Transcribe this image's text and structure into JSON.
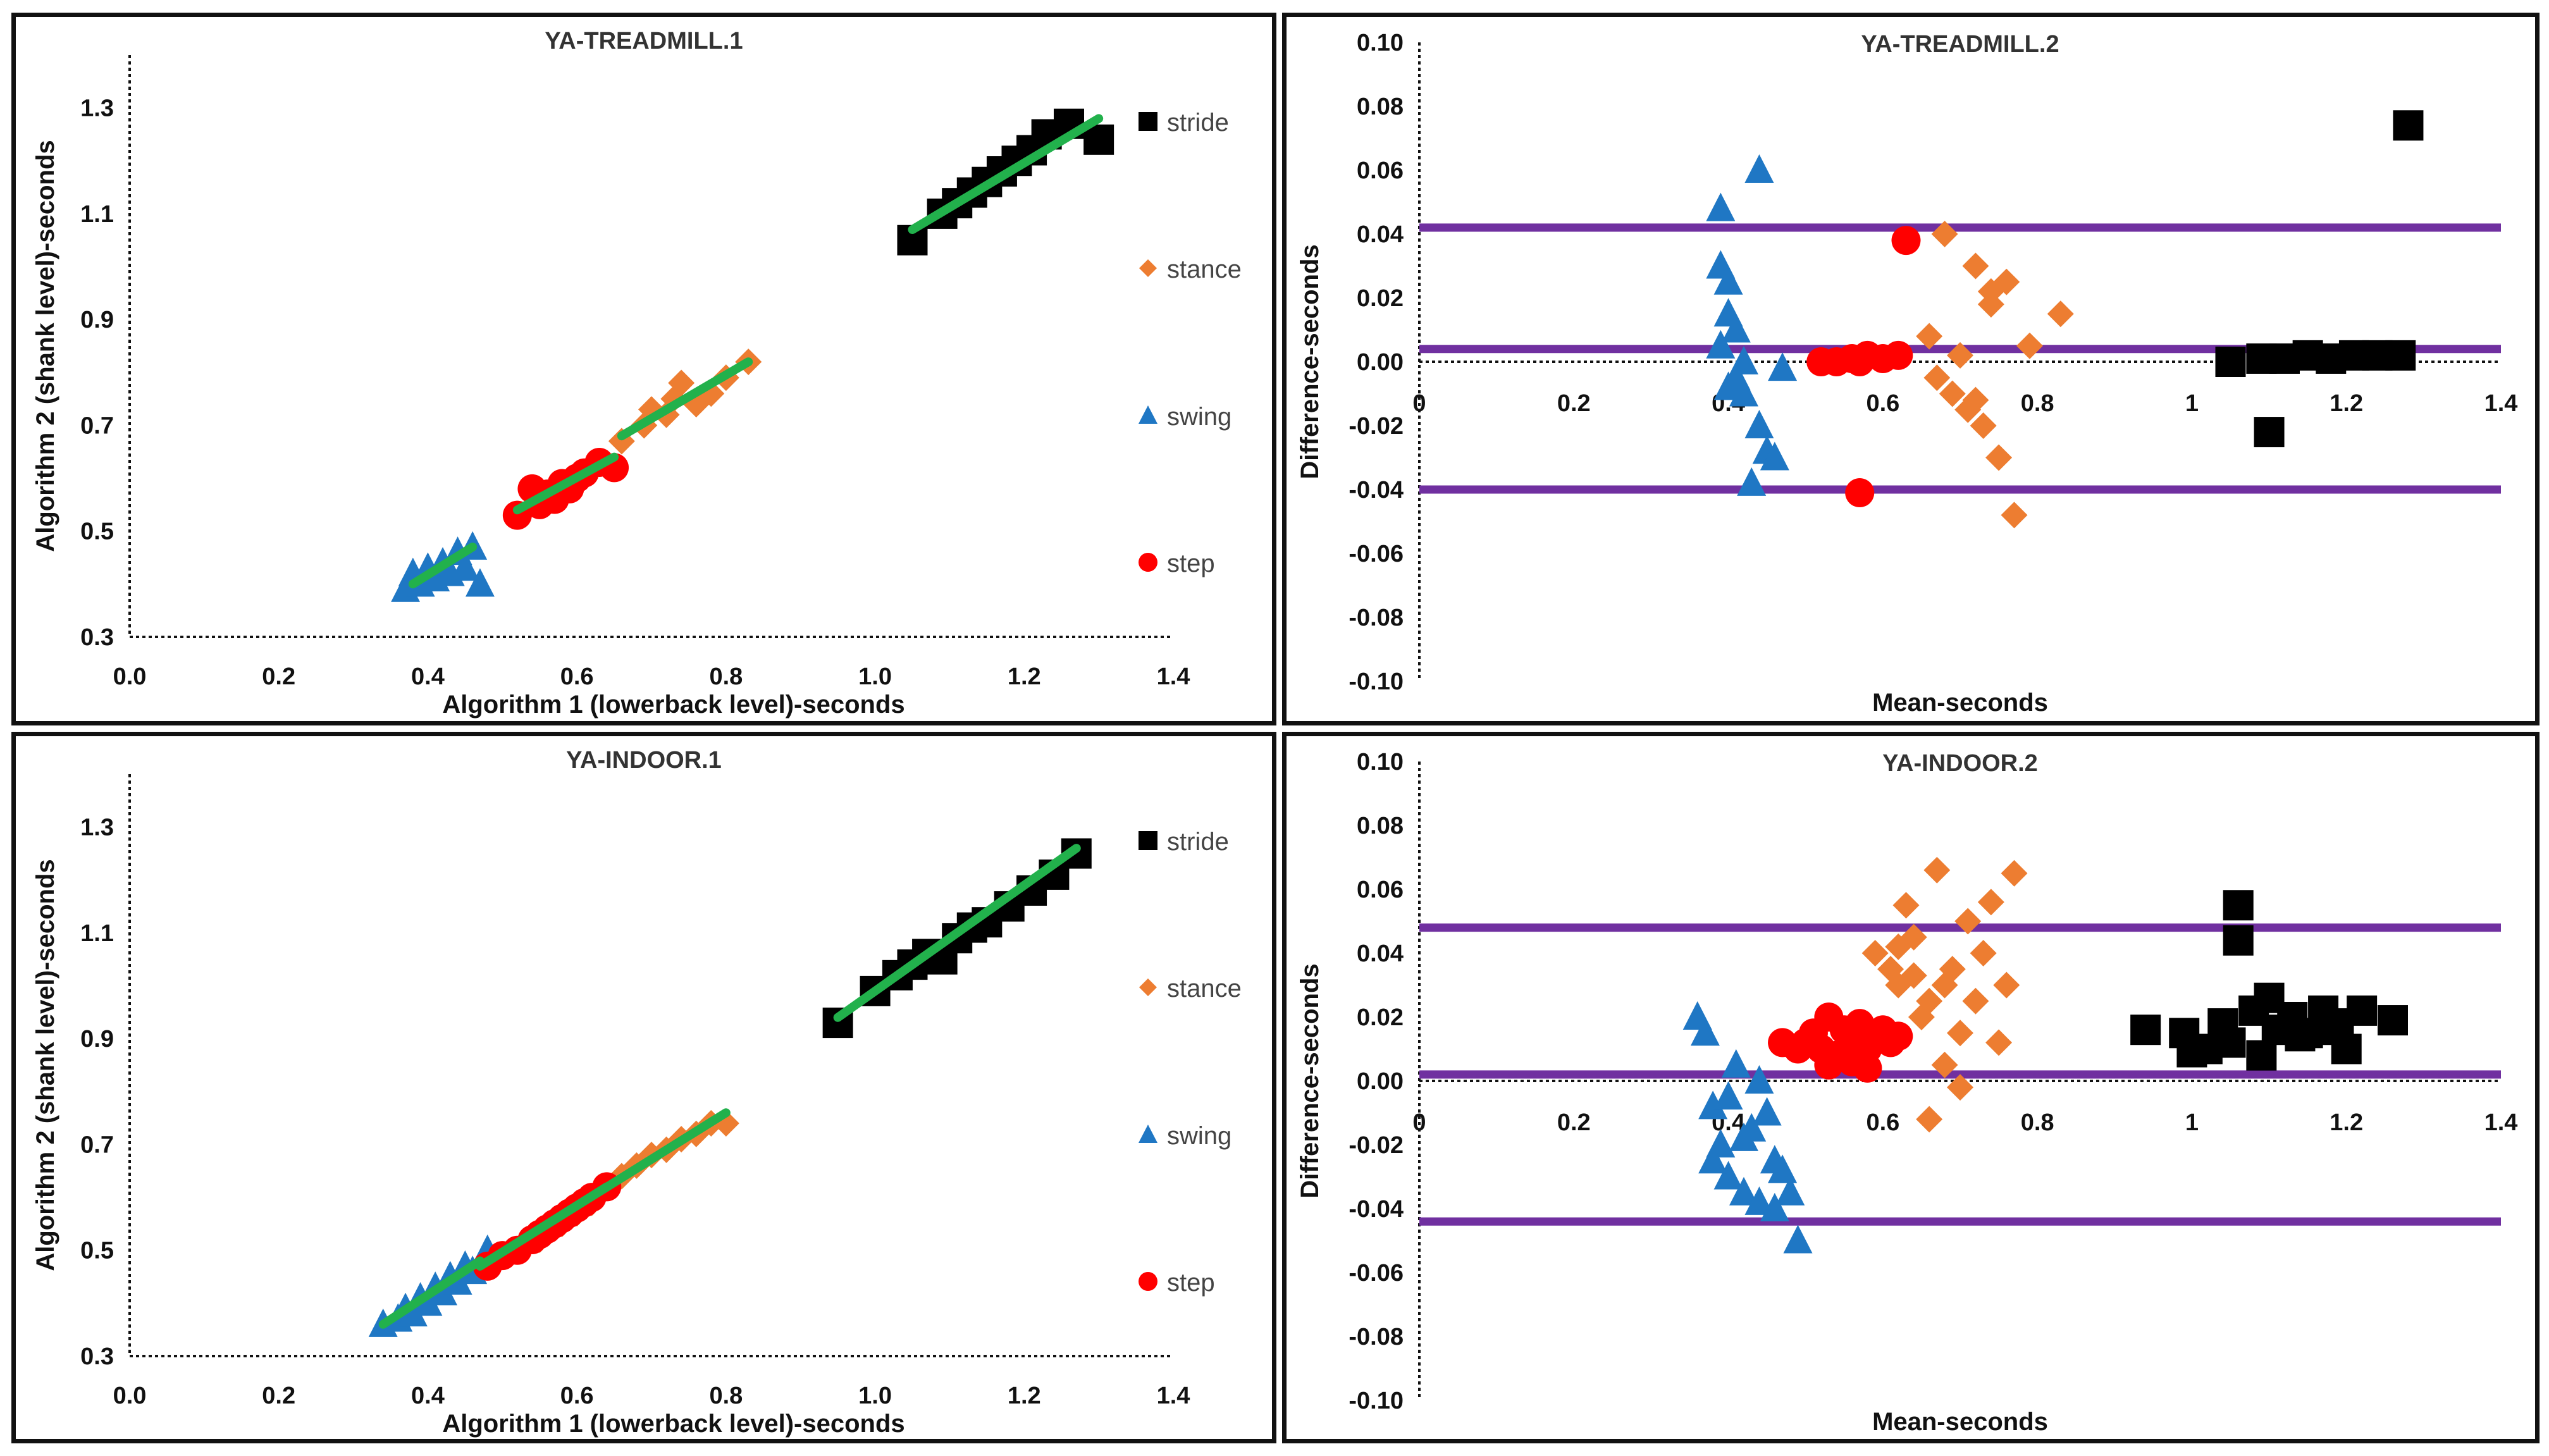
{
  "colors": {
    "stride": "#000000",
    "stance": "#ed7d31",
    "swing": "#1f77c4",
    "step": "#ff0000",
    "fit_line": "#22b14c",
    "limit_line": "#7030a0"
  },
  "chart_data": [
    {
      "id": "ya-treadmill-1",
      "type": "scatter",
      "title": "YA-TREADMILL.1",
      "xlabel": "Algorithm 1 (lowerback level)-seconds",
      "ylabel": "Algorithm 2 (shank level)-seconds",
      "xlim": [
        0.0,
        1.4
      ],
      "ylim": [
        0.3,
        1.4
      ],
      "xticks": [
        "0.0",
        "0.2",
        "0.4",
        "0.6",
        "0.8",
        "1.0",
        "1.2",
        "1.4"
      ],
      "yticks": [
        "0.3",
        "0.5",
        "0.7",
        "0.9",
        "1.1",
        "1.3"
      ],
      "legend": "right",
      "series": [
        {
          "name": "stride",
          "marker": "square",
          "x": [
            1.05,
            1.09,
            1.11,
            1.13,
            1.15,
            1.17,
            1.19,
            1.21,
            1.23,
            1.26,
            1.3
          ],
          "y": [
            1.05,
            1.1,
            1.12,
            1.14,
            1.16,
            1.18,
            1.2,
            1.22,
            1.25,
            1.27,
            1.24
          ],
          "fit": [
            [
              1.05,
              1.07
            ],
            [
              1.3,
              1.28
            ]
          ]
        },
        {
          "name": "stance",
          "marker": "diamond",
          "x": [
            0.66,
            0.69,
            0.7,
            0.72,
            0.73,
            0.74,
            0.76,
            0.78,
            0.8,
            0.83
          ],
          "y": [
            0.67,
            0.7,
            0.73,
            0.72,
            0.75,
            0.78,
            0.74,
            0.76,
            0.79,
            0.82
          ],
          "fit": [
            [
              0.66,
              0.68
            ],
            [
              0.83,
              0.82
            ]
          ]
        },
        {
          "name": "swing",
          "marker": "triangle",
          "x": [
            0.37,
            0.38,
            0.39,
            0.4,
            0.41,
            0.42,
            0.43,
            0.44,
            0.45,
            0.46,
            0.47
          ],
          "y": [
            0.39,
            0.42,
            0.4,
            0.43,
            0.41,
            0.44,
            0.42,
            0.46,
            0.43,
            0.47,
            0.4
          ],
          "fit": [
            [
              0.38,
              0.4
            ],
            [
              0.46,
              0.47
            ]
          ]
        },
        {
          "name": "step",
          "marker": "circle",
          "x": [
            0.52,
            0.54,
            0.55,
            0.56,
            0.57,
            0.58,
            0.59,
            0.6,
            0.61,
            0.63,
            0.65
          ],
          "y": [
            0.53,
            0.58,
            0.55,
            0.57,
            0.56,
            0.59,
            0.58,
            0.6,
            0.61,
            0.63,
            0.62
          ],
          "fit": [
            [
              0.52,
              0.54
            ],
            [
              0.65,
              0.64
            ]
          ]
        }
      ]
    },
    {
      "id": "ya-treadmill-2",
      "type": "scatter",
      "title": "YA-TREADMILL.2",
      "xlabel": "Mean-seconds",
      "ylabel": "Difference-seconds",
      "xlim": [
        0,
        1.4
      ],
      "ylim": [
        -0.1,
        0.1
      ],
      "xticks": [
        "0",
        "0.2",
        "0.4",
        "0.6",
        "0.8",
        "1",
        "1.2",
        "1.4"
      ],
      "yticks": [
        "0.10",
        "0.08",
        "0.06",
        "0.04",
        "0.02",
        "0.00",
        "-0.02",
        "-0.04",
        "-0.06",
        "-0.08",
        "-0.10"
      ],
      "hlines": [
        0.042,
        0.004,
        -0.04
      ],
      "series": [
        {
          "name": "stride",
          "marker": "square",
          "x": [
            1.05,
            1.09,
            1.1,
            1.12,
            1.15,
            1.18,
            1.21,
            1.24,
            1.27,
            1.28
          ],
          "y": [
            0.0,
            0.001,
            -0.022,
            0.001,
            0.002,
            0.001,
            0.002,
            0.002,
            0.002,
            0.074
          ]
        },
        {
          "name": "stance",
          "marker": "diamond",
          "x": [
            0.66,
            0.68,
            0.69,
            0.7,
            0.71,
            0.72,
            0.73,
            0.74,
            0.75,
            0.76,
            0.77,
            0.79,
            0.83,
            0.67,
            0.72,
            0.74
          ],
          "y": [
            0.008,
            0.04,
            -0.01,
            0.002,
            -0.015,
            0.03,
            -0.02,
            0.018,
            -0.03,
            0.025,
            -0.048,
            0.005,
            0.015,
            -0.005,
            -0.012,
            0.022
          ]
        },
        {
          "name": "swing",
          "marker": "triangle",
          "x": [
            0.39,
            0.39,
            0.4,
            0.4,
            0.41,
            0.41,
            0.42,
            0.42,
            0.43,
            0.44,
            0.44,
            0.45,
            0.46,
            0.47,
            0.39,
            0.4
          ],
          "y": [
            0.048,
            0.03,
            0.025,
            0.015,
            0.01,
            -0.005,
            0.0,
            -0.01,
            -0.038,
            0.06,
            -0.02,
            -0.028,
            -0.03,
            -0.002,
            0.005,
            -0.008
          ]
        },
        {
          "name": "step",
          "marker": "circle",
          "x": [
            0.52,
            0.54,
            0.56,
            0.57,
            0.58,
            0.6,
            0.62,
            0.63,
            0.57
          ],
          "y": [
            0.0,
            0.0,
            0.001,
            0.0,
            0.002,
            0.001,
            0.002,
            0.038,
            -0.041
          ]
        }
      ]
    },
    {
      "id": "ya-indoor-1",
      "type": "scatter",
      "title": "YA-INDOOR.1",
      "xlabel": "Algorithm 1 (lowerback level)-seconds",
      "ylabel": "Algorithm 2 (shank level)-seconds",
      "xlim": [
        0.0,
        1.4
      ],
      "ylim": [
        0.3,
        1.4
      ],
      "xticks": [
        "0.0",
        "0.2",
        "0.4",
        "0.6",
        "0.8",
        "1.0",
        "1.2",
        "1.4"
      ],
      "yticks": [
        "0.3",
        "0.5",
        "0.7",
        "0.9",
        "1.1",
        "1.3"
      ],
      "legend": "right",
      "series": [
        {
          "name": "stride",
          "marker": "square",
          "x": [
            0.95,
            1.0,
            1.03,
            1.05,
            1.07,
            1.09,
            1.11,
            1.13,
            1.15,
            1.18,
            1.21,
            1.24,
            1.27
          ],
          "y": [
            0.93,
            0.99,
            1.02,
            1.04,
            1.06,
            1.05,
            1.09,
            1.11,
            1.12,
            1.15,
            1.18,
            1.21,
            1.25
          ],
          "fit": [
            [
              0.95,
              0.94
            ],
            [
              1.27,
              1.26
            ]
          ]
        },
        {
          "name": "stance",
          "marker": "diamond",
          "x": [
            0.55,
            0.58,
            0.6,
            0.62,
            0.64,
            0.66,
            0.68,
            0.7,
            0.72,
            0.74,
            0.76,
            0.78,
            0.8
          ],
          "y": [
            0.52,
            0.55,
            0.57,
            0.59,
            0.62,
            0.64,
            0.66,
            0.68,
            0.69,
            0.71,
            0.72,
            0.74,
            0.74
          ],
          "fit": [
            [
              0.47,
              0.47
            ],
            [
              0.8,
              0.76
            ]
          ]
        },
        {
          "name": "swing",
          "marker": "triangle",
          "x": [
            0.34,
            0.36,
            0.37,
            0.38,
            0.39,
            0.4,
            0.41,
            0.42,
            0.43,
            0.44,
            0.45,
            0.46,
            0.48
          ],
          "y": [
            0.36,
            0.37,
            0.39,
            0.38,
            0.41,
            0.4,
            0.43,
            0.42,
            0.45,
            0.44,
            0.47,
            0.46,
            0.5
          ],
          "fit": [
            [
              0.34,
              0.36
            ],
            [
              0.47,
              0.48
            ]
          ]
        },
        {
          "name": "step",
          "marker": "circle",
          "x": [
            0.48,
            0.5,
            0.52,
            0.54,
            0.55,
            0.56,
            0.57,
            0.58,
            0.59,
            0.6,
            0.61,
            0.62,
            0.64
          ],
          "y": [
            0.47,
            0.49,
            0.5,
            0.52,
            0.53,
            0.54,
            0.55,
            0.56,
            0.57,
            0.58,
            0.59,
            0.6,
            0.62
          ],
          "fit": [
            [
              0.47,
              0.47
            ],
            [
              0.64,
              0.62
            ]
          ]
        }
      ]
    },
    {
      "id": "ya-indoor-2",
      "type": "scatter",
      "title": "YA-INDOOR.2",
      "xlabel": "Mean-seconds",
      "ylabel": "Difference-seconds",
      "xlim": [
        0,
        1.4
      ],
      "ylim": [
        -0.1,
        0.1
      ],
      "xticks": [
        "0",
        "0.2",
        "0.4",
        "0.6",
        "0.8",
        "1",
        "1.2",
        "1.4"
      ],
      "yticks": [
        "0.10",
        "0.08",
        "0.06",
        "0.04",
        "0.02",
        "0.00",
        "-0.02",
        "-0.04",
        "-0.06",
        "-0.08",
        "-0.10"
      ],
      "hlines": [
        0.048,
        0.002,
        -0.044
      ],
      "series": [
        {
          "name": "stride",
          "marker": "square",
          "x": [
            0.94,
            0.99,
            1.02,
            1.04,
            1.06,
            1.06,
            1.08,
            1.1,
            1.11,
            1.13,
            1.15,
            1.17,
            1.19,
            1.2,
            1.22,
            1.26,
            1.0,
            1.05,
            1.09,
            1.14,
            1.18
          ],
          "y": [
            0.016,
            0.015,
            0.01,
            0.018,
            0.055,
            0.044,
            0.022,
            0.026,
            0.016,
            0.02,
            0.015,
            0.022,
            0.018,
            0.01,
            0.022,
            0.019,
            0.009,
            0.012,
            0.008,
            0.014,
            0.016
          ]
        },
        {
          "name": "stance",
          "marker": "diamond",
          "x": [
            0.59,
            0.61,
            0.62,
            0.63,
            0.64,
            0.65,
            0.66,
            0.67,
            0.68,
            0.69,
            0.7,
            0.71,
            0.72,
            0.73,
            0.74,
            0.75,
            0.76,
            0.77,
            0.66,
            0.68,
            0.7,
            0.62,
            0.64
          ],
          "y": [
            0.04,
            0.035,
            0.03,
            0.055,
            0.045,
            0.02,
            0.025,
            0.066,
            0.03,
            0.035,
            -0.002,
            0.05,
            0.025,
            0.04,
            0.056,
            0.012,
            0.03,
            0.065,
            -0.012,
            0.005,
            0.015,
            0.042,
            0.033
          ]
        },
        {
          "name": "swing",
          "marker": "triangle",
          "x": [
            0.36,
            0.37,
            0.38,
            0.39,
            0.4,
            0.41,
            0.42,
            0.43,
            0.44,
            0.45,
            0.46,
            0.47,
            0.48,
            0.49,
            0.38,
            0.4,
            0.42,
            0.44,
            0.46
          ],
          "y": [
            0.02,
            0.015,
            -0.008,
            -0.02,
            -0.03,
            0.005,
            -0.035,
            -0.015,
            -0.038,
            -0.01,
            -0.025,
            -0.028,
            -0.035,
            -0.05,
            -0.025,
            -0.005,
            -0.018,
            0.0,
            -0.04
          ]
        },
        {
          "name": "step",
          "marker": "circle",
          "x": [
            0.47,
            0.49,
            0.5,
            0.51,
            0.52,
            0.53,
            0.54,
            0.55,
            0.56,
            0.57,
            0.58,
            0.59,
            0.6,
            0.61,
            0.62,
            0.53,
            0.56,
            0.58
          ],
          "y": [
            0.012,
            0.01,
            0.012,
            0.015,
            0.01,
            0.02,
            0.008,
            0.016,
            0.012,
            0.018,
            0.01,
            0.014,
            0.016,
            0.012,
            0.014,
            0.005,
            0.006,
            0.004
          ]
        }
      ]
    }
  ]
}
